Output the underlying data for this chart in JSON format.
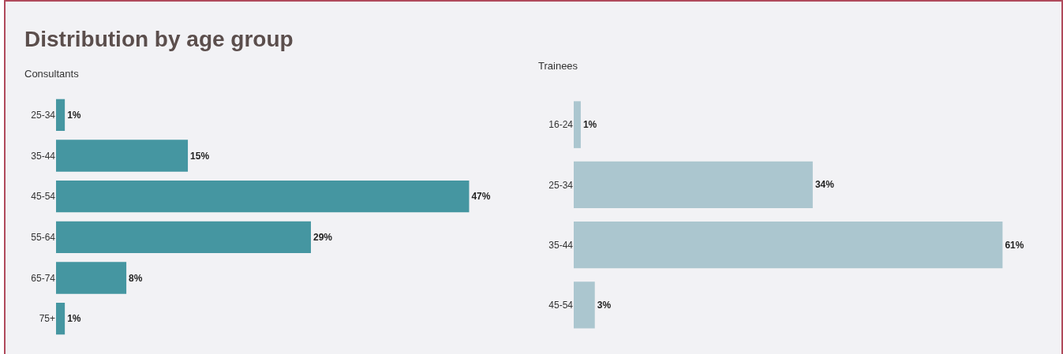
{
  "chart_data": [
    {
      "type": "bar",
      "orientation": "horizontal",
      "title": "Distribution by age group",
      "subtitle": "Consultants",
      "categories": [
        "25-34",
        "35-44",
        "45-54",
        "55-64",
        "65-74",
        "75+"
      ],
      "values": [
        1,
        15,
        47,
        29,
        8,
        1
      ],
      "value_labels": [
        "1%",
        "15%",
        "47%",
        "29%",
        "8%",
        "1%"
      ],
      "color": "#4596a1",
      "grid": false,
      "legend": false
    },
    {
      "type": "bar",
      "orientation": "horizontal",
      "subtitle": "Trainees",
      "categories": [
        "16-24",
        "25-34",
        "35-44",
        "45-54"
      ],
      "values": [
        1,
        34,
        61,
        3
      ],
      "value_labels": [
        "1%",
        "34%",
        "61%",
        "3%"
      ],
      "color": "#abc6cf",
      "grid": false,
      "legend": false
    }
  ]
}
